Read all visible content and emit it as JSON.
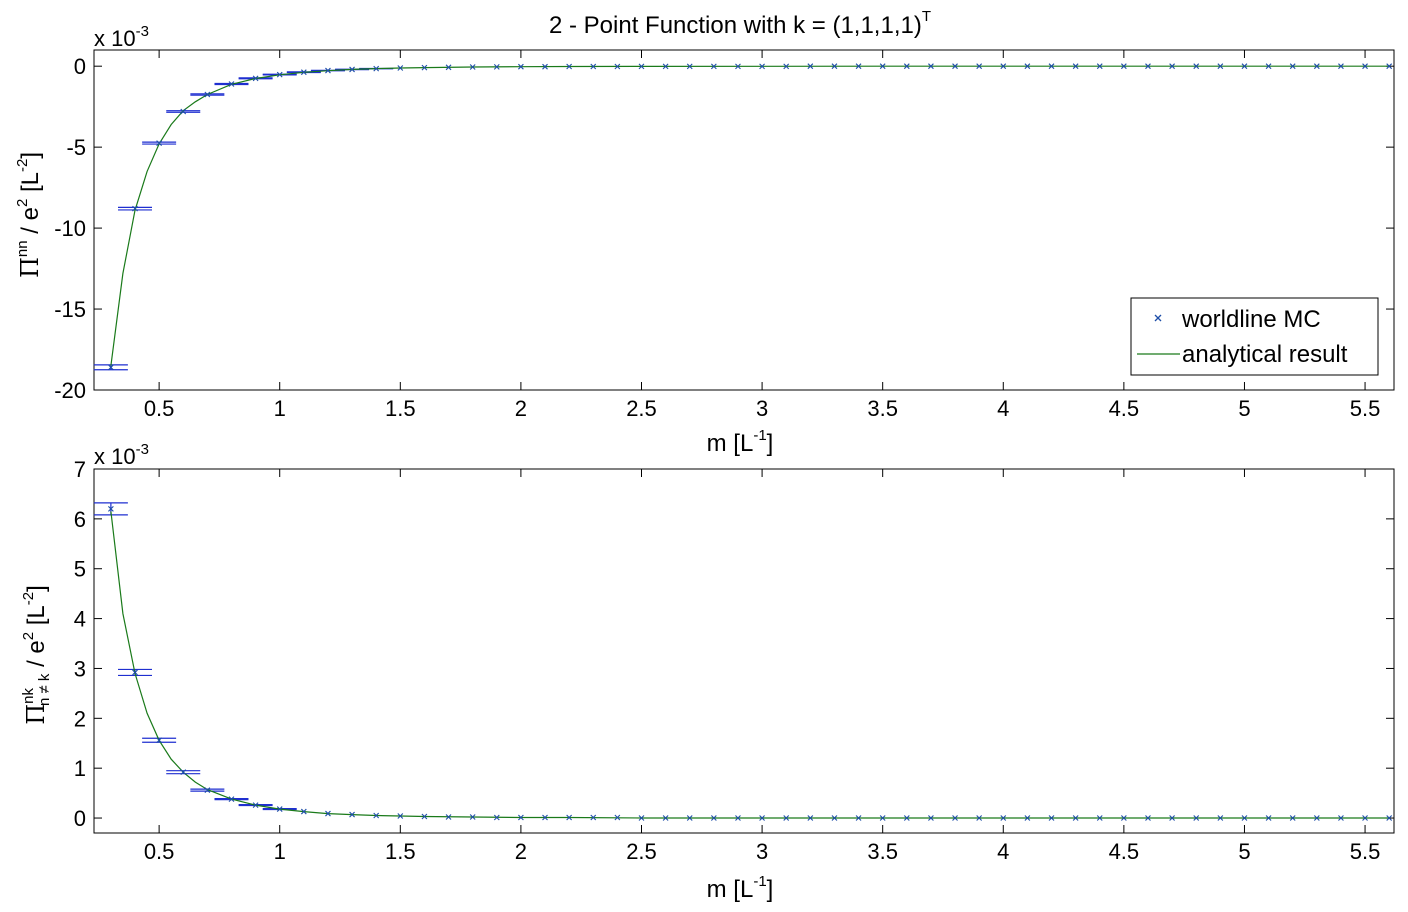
{
  "chart_data": [
    {
      "type": "scatter",
      "title": {
        "prefix": "2 - Point Function with k = (1,1,1,1)",
        "superscript": "T"
      },
      "xlabel": {
        "main": "m [L",
        "sup": "-1",
        "end": "]"
      },
      "ylabel": {
        "pi": "Π",
        "sup1": "nn",
        "mid": " / e",
        "sup2": "2",
        "bracket": " [L",
        "sup3": "-2",
        "end": "]"
      },
      "y_exponent": {
        "prefix": "x 10",
        "sup": "-3"
      },
      "xlim": [
        0.23,
        5.62
      ],
      "ylim": [
        -20,
        1
      ],
      "xticks": [
        0.5,
        1,
        1.5,
        2,
        2.5,
        3,
        3.5,
        4,
        4.5,
        5,
        5.5
      ],
      "xtick_labels": [
        "0.5",
        "1",
        "1.5",
        "2",
        "2.5",
        "3",
        "3.5",
        "4",
        "4.5",
        "5",
        "5.5"
      ],
      "yticks": [
        -20,
        -15,
        -10,
        -5,
        0
      ],
      "ytick_labels": [
        "-20",
        "-15",
        "-10",
        "-5",
        "0"
      ],
      "legend": {
        "position": "bottom-right",
        "entries": [
          "worldline MC",
          "analytical result"
        ]
      },
      "series": [
        {
          "name": "worldline MC",
          "kind": "markers",
          "color": "#1f4fa8",
          "x": [
            0.3,
            0.4,
            0.5,
            0.6,
            0.7,
            0.8,
            0.9,
            1.0,
            1.1,
            1.2,
            1.3,
            1.4,
            1.5,
            1.6,
            1.7,
            1.8,
            1.9,
            2.0,
            2.1,
            2.2,
            2.3,
            2.4,
            2.5,
            2.6,
            2.7,
            2.8,
            2.9,
            3.0,
            3.1,
            3.2,
            3.3,
            3.4,
            3.5,
            3.6,
            3.7,
            3.8,
            3.9,
            4.0,
            4.1,
            4.2,
            4.3,
            4.4,
            4.5,
            4.6,
            4.7,
            4.8,
            4.9,
            5.0,
            5.1,
            5.2,
            5.3,
            5.4,
            5.5,
            5.6
          ],
          "y": [
            -18.6,
            -8.8,
            -4.75,
            -2.8,
            -1.75,
            -1.1,
            -0.75,
            -0.52,
            -0.37,
            -0.27,
            -0.2,
            -0.15,
            -0.11,
            -0.09,
            -0.07,
            -0.05,
            -0.04,
            -0.03,
            -0.03,
            -0.02,
            -0.02,
            -0.02,
            -0.01,
            -0.01,
            -0.01,
            -0.01,
            -0.01,
            -0.01,
            -0.01,
            0,
            0,
            0,
            0,
            0,
            0,
            0,
            0,
            0,
            0,
            0,
            0,
            0,
            0,
            0,
            0,
            0,
            0,
            0,
            0,
            0,
            0,
            0,
            0,
            0
          ],
          "err": [
            0.15,
            0.08,
            0.06,
            0.05,
            0.04,
            0.03,
            0.03,
            0.02,
            0.02,
            0.01,
            0.01,
            0.01,
            0,
            0,
            0,
            0,
            0,
            0,
            0,
            0,
            0,
            0,
            0,
            0,
            0,
            0,
            0,
            0,
            0,
            0,
            0,
            0,
            0,
            0,
            0,
            0,
            0,
            0,
            0,
            0,
            0,
            0,
            0,
            0,
            0,
            0,
            0,
            0,
            0,
            0,
            0,
            0,
            0,
            0
          ]
        },
        {
          "name": "analytical result",
          "kind": "line",
          "color": "#1a7a1a",
          "x": [
            0.3,
            0.35,
            0.4,
            0.45,
            0.5,
            0.55,
            0.6,
            0.65,
            0.7,
            0.8,
            0.9,
            1.0,
            1.1,
            1.2,
            1.3,
            1.4,
            1.5,
            1.6,
            1.8,
            2.0,
            2.2,
            2.5,
            3.0,
            3.5,
            4.0,
            4.5,
            5.0,
            5.5,
            5.6
          ],
          "y": [
            -18.5,
            -12.8,
            -8.9,
            -6.5,
            -4.8,
            -3.6,
            -2.75,
            -2.2,
            -1.75,
            -1.12,
            -0.76,
            -0.53,
            -0.38,
            -0.28,
            -0.2,
            -0.15,
            -0.11,
            -0.09,
            -0.05,
            -0.03,
            -0.02,
            -0.01,
            -0.005,
            0,
            0,
            0,
            0,
            0,
            0
          ]
        }
      ]
    },
    {
      "type": "scatter",
      "xlabel": {
        "main": "m [L",
        "sup": "-1",
        "end": "]"
      },
      "ylabel": {
        "pi": "Π",
        "sup1": "nk",
        "sub1": "n ≠ k",
        "mid": " / e",
        "sup2": "2",
        "bracket": " [L",
        "sup3": "-2",
        "end": "]"
      },
      "y_exponent": {
        "prefix": "x 10",
        "sup": "-3"
      },
      "xlim": [
        0.23,
        5.62
      ],
      "ylim": [
        -0.3,
        7
      ],
      "xticks": [
        0.5,
        1,
        1.5,
        2,
        2.5,
        3,
        3.5,
        4,
        4.5,
        5,
        5.5
      ],
      "xtick_labels": [
        "0.5",
        "1",
        "1.5",
        "2",
        "2.5",
        "3",
        "3.5",
        "4",
        "4.5",
        "5",
        "5.5"
      ],
      "yticks": [
        0,
        1,
        2,
        3,
        4,
        5,
        6,
        7
      ],
      "ytick_labels": [
        "0",
        "1",
        "2",
        "3",
        "4",
        "5",
        "6",
        "7"
      ],
      "series": [
        {
          "kind": "markers",
          "color": "#1f4fa8",
          "x": [
            0.3,
            0.4,
            0.5,
            0.6,
            0.7,
            0.8,
            0.9,
            1.0,
            1.1,
            1.2,
            1.3,
            1.4,
            1.5,
            1.6,
            1.7,
            1.8,
            1.9,
            2.0,
            2.1,
            2.2,
            2.3,
            2.4,
            2.5,
            2.6,
            2.7,
            2.8,
            2.9,
            3.0,
            3.1,
            3.2,
            3.3,
            3.4,
            3.5,
            3.6,
            3.7,
            3.8,
            3.9,
            4.0,
            4.1,
            4.2,
            4.3,
            4.4,
            4.5,
            4.6,
            4.7,
            4.8,
            4.9,
            5.0,
            5.1,
            5.2,
            5.3,
            5.4,
            5.5,
            5.6
          ],
          "y": [
            6.2,
            2.92,
            1.56,
            0.92,
            0.56,
            0.38,
            0.26,
            0.18,
            0.13,
            0.09,
            0.07,
            0.05,
            0.04,
            0.03,
            0.02,
            0.02,
            0.01,
            0.01,
            0.01,
            0.01,
            0.01,
            0.01,
            0,
            0,
            0,
            0,
            0,
            0,
            0,
            0,
            0,
            0,
            0,
            0,
            0,
            0,
            0,
            0,
            0,
            0,
            0,
            0,
            0,
            0,
            0,
            0,
            0,
            0,
            0,
            0,
            0,
            0,
            0,
            0
          ],
          "err": [
            0.12,
            0.06,
            0.04,
            0.03,
            0.02,
            0.01,
            0.01,
            0.01,
            0,
            0,
            0,
            0,
            0,
            0,
            0,
            0,
            0,
            0,
            0,
            0,
            0,
            0,
            0,
            0,
            0,
            0,
            0,
            0,
            0,
            0,
            0,
            0,
            0,
            0,
            0,
            0,
            0,
            0,
            0,
            0,
            0,
            0,
            0,
            0,
            0,
            0,
            0,
            0,
            0,
            0,
            0,
            0,
            0,
            0
          ]
        },
        {
          "kind": "line",
          "color": "#1a7a1a",
          "x": [
            0.3,
            0.35,
            0.4,
            0.45,
            0.5,
            0.55,
            0.6,
            0.65,
            0.7,
            0.8,
            0.9,
            1.0,
            1.1,
            1.2,
            1.3,
            1.4,
            1.5,
            1.6,
            1.8,
            2.0,
            2.2,
            2.5,
            3.0,
            3.5,
            4.0,
            4.5,
            5.0,
            5.5,
            5.6
          ],
          "y": [
            6.15,
            4.1,
            2.9,
            2.1,
            1.56,
            1.18,
            0.92,
            0.72,
            0.57,
            0.38,
            0.26,
            0.18,
            0.13,
            0.09,
            0.07,
            0.05,
            0.04,
            0.03,
            0.02,
            0.01,
            0.01,
            0,
            0,
            0,
            0,
            0,
            0,
            0,
            0
          ]
        }
      ]
    }
  ]
}
